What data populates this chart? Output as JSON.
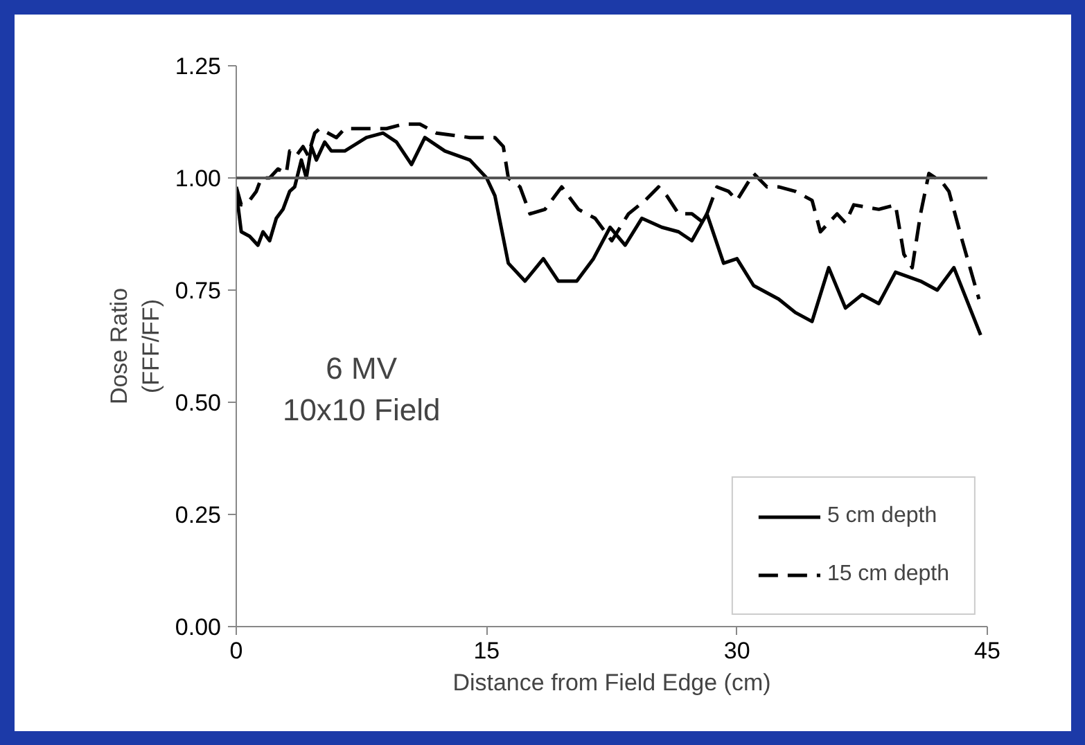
{
  "chart_data": {
    "type": "line",
    "xlabel": "Distance from Field Edge (cm)",
    "ylabel": "Dose Ratio\n(FFF/FF)",
    "xlim": [
      0,
      45
    ],
    "xticks": [
      0,
      15,
      30,
      45
    ],
    "ylim": [
      0,
      1.25
    ],
    "yticks": [
      {
        "value": 0,
        "label": "0.00"
      },
      {
        "value": 0.25,
        "label": "0.25"
      },
      {
        "value": 0.5,
        "label": "0.50"
      },
      {
        "value": 0.75,
        "label": "0.75"
      },
      {
        "value": 1.0,
        "label": "1.00"
      },
      {
        "value": 1.25,
        "label": "1.25"
      }
    ],
    "grid": false,
    "legend": "bottom right",
    "marker": "none",
    "ref_lines": [
      {
        "axis": "y",
        "value": 1.0,
        "color": "#555555"
      }
    ],
    "annotations": [
      "6 MV\n10x10 Field"
    ],
    "series": [
      {
        "name": "5 cm depth",
        "color": "#000000",
        "line_style": "solid",
        "x": [
          0,
          0.3,
          0.8,
          1.3,
          1.6,
          2,
          2.4,
          2.8,
          3.2,
          3.5,
          3.9,
          4.2,
          4.5,
          4.8,
          5.3,
          5.7,
          6.5,
          7.8,
          8.8,
          9.6,
          10.5,
          11.3,
          12.5,
          14,
          15,
          15.5,
          16.3,
          17.3,
          18.4,
          19.3,
          20.4,
          21.4,
          22.4,
          23.3,
          24.3,
          25.5,
          26.5,
          27.3,
          28.2,
          29.2,
          30,
          31,
          32.5,
          33.5,
          34.5,
          35.5,
          36.5,
          37.5,
          38.5,
          39.5,
          41,
          42,
          43,
          44.6
        ],
        "values": [
          0.97,
          0.88,
          0.87,
          0.85,
          0.88,
          0.86,
          0.91,
          0.93,
          0.97,
          0.98,
          1.04,
          1.0,
          1.07,
          1.04,
          1.08,
          1.06,
          1.06,
          1.09,
          1.1,
          1.08,
          1.03,
          1.09,
          1.06,
          1.04,
          1.0,
          0.96,
          0.81,
          0.77,
          0.82,
          0.77,
          0.77,
          0.82,
          0.89,
          0.85,
          0.91,
          0.89,
          0.88,
          0.86,
          0.92,
          0.81,
          0.82,
          0.76,
          0.73,
          0.7,
          0.68,
          0.8,
          0.71,
          0.74,
          0.72,
          0.79,
          0.77,
          0.75,
          0.8,
          0.65
        ]
      },
      {
        "name": "15 cm depth",
        "color": "#000000",
        "line_style": "dashed",
        "x": [
          0,
          0.3,
          0.8,
          1.2,
          1.5,
          2,
          2.5,
          3,
          3.2,
          3.6,
          4,
          4.3,
          4.7,
          5,
          5.5,
          6,
          6.5,
          8,
          9,
          10,
          11,
          12,
          14,
          15.5,
          16,
          16.3,
          17,
          17.6,
          18.5,
          19.5,
          20.5,
          21.5,
          22.5,
          23.5,
          24.5,
          25.3,
          25.8,
          26.5,
          27.3,
          28,
          28.8,
          29.5,
          30,
          31,
          31.8,
          32.5,
          33.5,
          34.5,
          35,
          36,
          36.5,
          37,
          38.5,
          39.5,
          40,
          40.5,
          41,
          41.5,
          42.3,
          42.7,
          43.5,
          44.5
        ],
        "values": [
          0.98,
          0.94,
          0.95,
          0.97,
          1.0,
          1.0,
          1.02,
          1.01,
          1.06,
          1.05,
          1.07,
          1.05,
          1.1,
          1.11,
          1.1,
          1.09,
          1.11,
          1.11,
          1.11,
          1.12,
          1.12,
          1.1,
          1.09,
          1.09,
          1.07,
          1.0,
          0.98,
          0.92,
          0.93,
          0.98,
          0.93,
          0.91,
          0.86,
          0.92,
          0.95,
          0.98,
          0.96,
          0.92,
          0.92,
          0.9,
          0.98,
          0.97,
          0.95,
          1.01,
          0.98,
          0.98,
          0.97,
          0.95,
          0.88,
          0.92,
          0.9,
          0.94,
          0.93,
          0.94,
          0.83,
          0.8,
          0.92,
          1.01,
          0.99,
          0.97,
          0.86,
          0.73
        ]
      }
    ]
  }
}
